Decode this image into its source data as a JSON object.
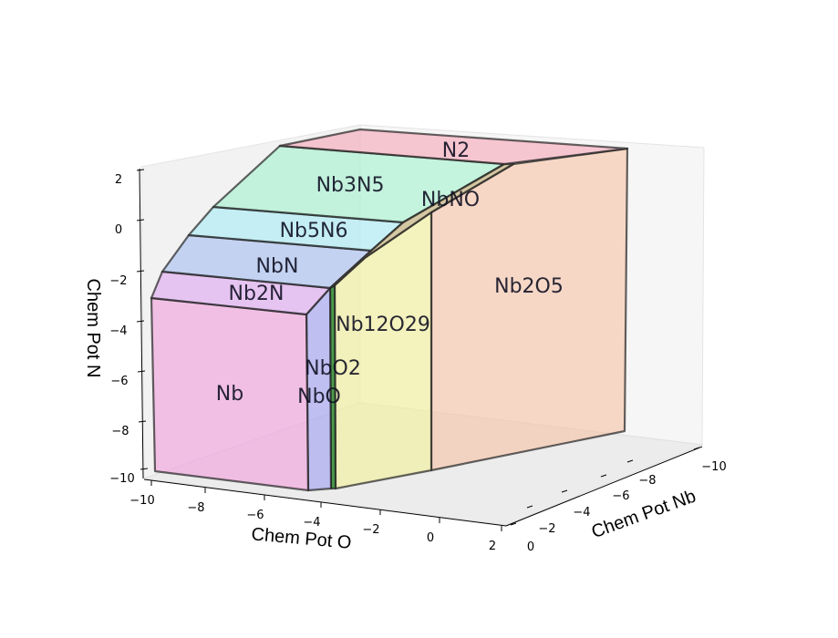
{
  "chart_data": {
    "type": "3d-phase-diagram",
    "axes": {
      "x": {
        "label": "Chem Pot O",
        "ticks": [
          "−10",
          "−8",
          "−6",
          "−4",
          "−2",
          "0",
          "2"
        ]
      },
      "y": {
        "label": "Chem Pot Nb",
        "ticks": [
          "0",
          "−2",
          "−4",
          "−6",
          "−8",
          "−10"
        ]
      },
      "z": {
        "label": "Chem Pot N",
        "ticks": [
          "2",
          "0",
          "−2",
          "−4",
          "−6",
          "−8",
          "−10"
        ]
      }
    },
    "phases": [
      {
        "name": "Nb",
        "color": "#f0a0dc"
      },
      {
        "name": "NbO",
        "color": "#a0a0f0"
      },
      {
        "name": "NbO2",
        "color": "#2e8b2e"
      },
      {
        "name": "Nb12O29",
        "color": "#f2ef9a"
      },
      {
        "name": "Nb2O5",
        "color": "#f5c4a8"
      },
      {
        "name": "Nb2N",
        "color": "#dfa8f0"
      },
      {
        "name": "NbN",
        "color": "#a8bff0"
      },
      {
        "name": "Nb5N6",
        "color": "#a8ecf5"
      },
      {
        "name": "Nb3N5",
        "color": "#a5f0cf"
      },
      {
        "name": "NbNO",
        "color": "#b8a060"
      },
      {
        "name": "N2",
        "color": "#f5a8b8"
      }
    ],
    "grid": false,
    "panes": true
  }
}
